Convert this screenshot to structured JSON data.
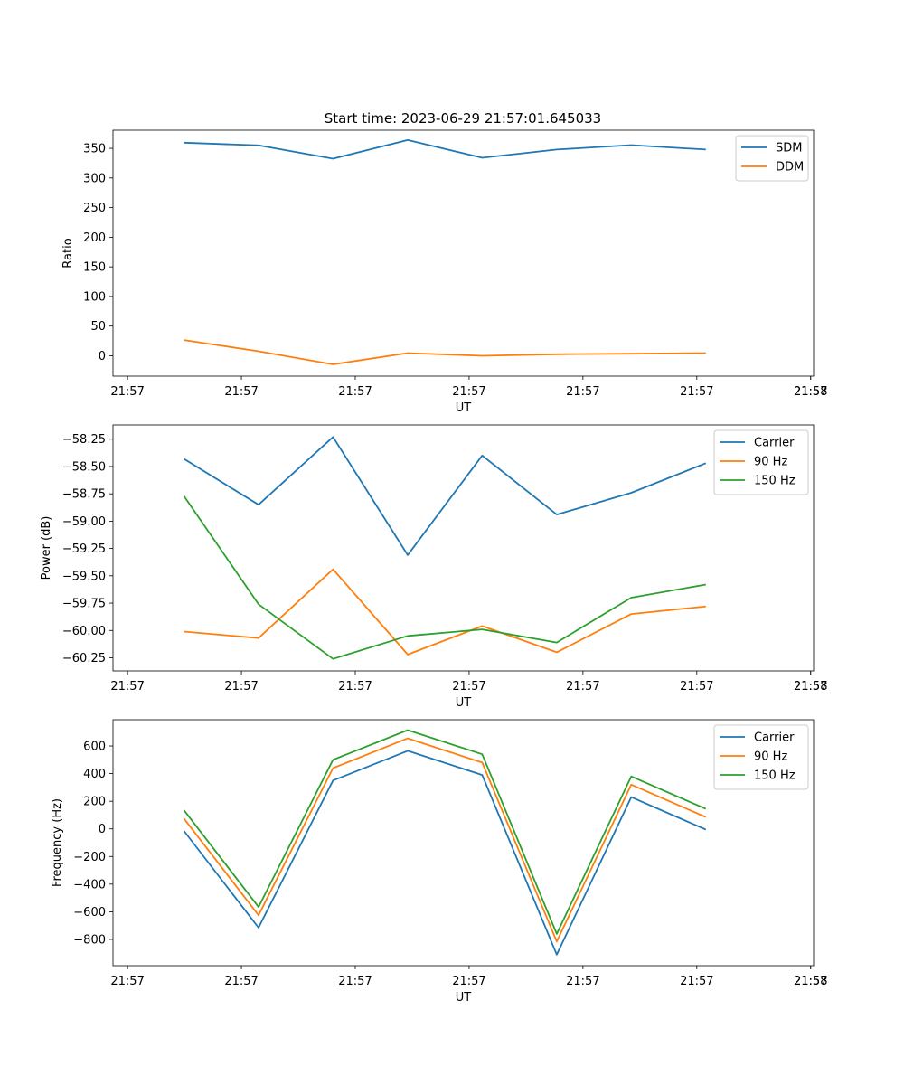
{
  "title": "Start time: 2023-06-29 21:57:01.645033",
  "colors": {
    "blue": "#1f77b4",
    "orange": "#ff7f0e",
    "green": "#2ca02c"
  },
  "chart_data": [
    {
      "type": "line",
      "xlabel": "UT",
      "ylabel": "Ratio",
      "x_tick_labels": [
        "21:57",
        "21:57",
        "21:57",
        "21:57",
        "21:57",
        "21:57",
        "21:57",
        "21:58"
      ],
      "yticks": [
        0,
        50,
        100,
        150,
        200,
        250,
        300,
        350
      ],
      "ytick_labels": [
        "0",
        "50",
        "100",
        "150",
        "200",
        "250",
        "300",
        "350"
      ],
      "ylim": [
        -34.4,
        380.6
      ],
      "legend": "upper right",
      "grid": false,
      "series": [
        {
          "name": "SDM",
          "color": "#1f77b4",
          "values": [
            359.5,
            355,
            332.5,
            364,
            334,
            348,
            355.5,
            348
          ]
        },
        {
          "name": "DDM",
          "color": "#ff7f0e",
          "values": [
            26.5,
            7.5,
            -14.5,
            4.5,
            0,
            2.5,
            3.5,
            4.5
          ]
        }
      ]
    },
    {
      "type": "line",
      "xlabel": "UT",
      "ylabel": "Power (dB)",
      "x_tick_labels": [
        "21:57",
        "21:57",
        "21:57",
        "21:57",
        "21:57",
        "21:57",
        "21:57",
        "21:58"
      ],
      "yticks": [
        -58.25,
        -58.5,
        -58.75,
        -59.0,
        -59.25,
        -59.5,
        -59.75,
        -60.0,
        -60.25
      ],
      "ytick_labels": [
        "−58.25",
        "−58.50",
        "−58.75",
        "−59.00",
        "−59.25",
        "−59.50",
        "−59.75",
        "−60.00",
        "−60.25"
      ],
      "ylim": [
        -60.37,
        -58.12
      ],
      "legend": "upper right",
      "grid": false,
      "series": [
        {
          "name": "Carrier",
          "color": "#1f77b4",
          "values": [
            -58.43,
            -58.85,
            -58.23,
            -59.31,
            -58.4,
            -58.94,
            -58.74,
            -58.47
          ]
        },
        {
          "name": "90 Hz",
          "color": "#ff7f0e",
          "values": [
            -60.01,
            -60.07,
            -59.44,
            -60.22,
            -59.96,
            -60.2,
            -59.85,
            -59.78
          ]
        },
        {
          "name": "150 Hz",
          "color": "#2ca02c",
          "values": [
            -58.77,
            -59.76,
            -60.26,
            -60.05,
            -59.99,
            -60.11,
            -59.7,
            -59.58
          ]
        }
      ]
    },
    {
      "type": "line",
      "xlabel": "UT",
      "ylabel": "Frequency (Hz)",
      "x_tick_labels": [
        "21:57",
        "21:57",
        "21:57",
        "21:57",
        "21:57",
        "21:57",
        "21:57",
        "21:58"
      ],
      "yticks": [
        -800,
        -600,
        -400,
        -200,
        0,
        200,
        400,
        600
      ],
      "ytick_labels": [
        "−800",
        "−600",
        "−400",
        "−200",
        "0",
        "200",
        "400",
        "600"
      ],
      "ylim": [
        -990,
        790
      ],
      "legend": "upper right",
      "grid": false,
      "series": [
        {
          "name": "Carrier",
          "color": "#1f77b4",
          "values": [
            -15,
            -715,
            350,
            565,
            390,
            -910,
            230,
            -5
          ]
        },
        {
          "name": "90 Hz",
          "color": "#ff7f0e",
          "values": [
            75,
            -625,
            440,
            655,
            480,
            -815,
            320,
            85
          ]
        },
        {
          "name": "150 Hz",
          "color": "#2ca02c",
          "values": [
            135,
            -565,
            500,
            715,
            540,
            -760,
            380,
            145
          ]
        }
      ]
    }
  ]
}
